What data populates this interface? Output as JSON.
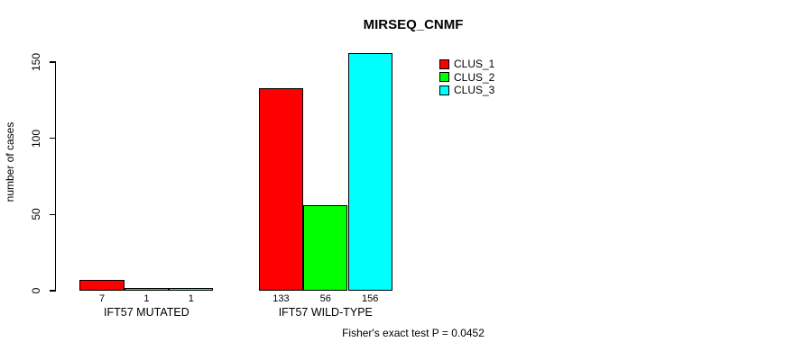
{
  "chart_data": {
    "type": "bar",
    "title": "MIRSEQ_CNMF",
    "ylabel": "number of cases",
    "xlabel": "",
    "categories": [
      "IFT57 MUTATED",
      "IFT57 WILD-TYPE"
    ],
    "series": [
      {
        "name": "CLUS_1",
        "color": "#FF0000",
        "values": [
          7,
          133
        ]
      },
      {
        "name": "CLUS_2",
        "color": "#00FF00",
        "values": [
          1,
          56
        ]
      },
      {
        "name": "CLUS_3",
        "color": "#00FFFF",
        "values": [
          1,
          156
        ]
      }
    ],
    "bar_value_labels": [
      [
        "7",
        "1",
        "1"
      ],
      [
        "133",
        "56",
        "156"
      ]
    ],
    "yticks": [
      0,
      50,
      100,
      150
    ],
    "ylim": [
      0,
      160
    ],
    "grid": false,
    "legend_position": "top-right",
    "legend_labels": [
      "CLUS_1",
      "CLUS_2",
      "CLUS_3"
    ],
    "annotation": "Fisher's exact test P = 0.0452",
    "axis_color": "#000000",
    "bar_border_color": "#000000",
    "background_color": "#FFFFFF"
  }
}
